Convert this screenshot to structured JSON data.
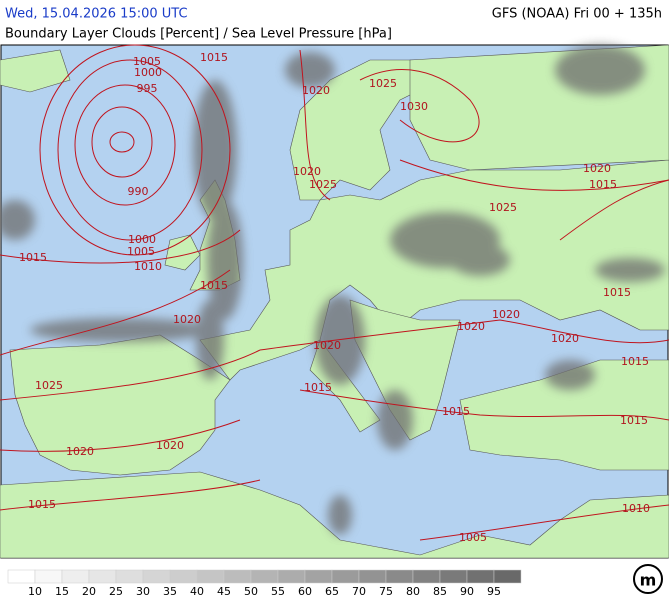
{
  "header": {
    "valid_time": "Wed, 15.04.2026 15:00 UTC",
    "model_run": "GFS (NOAA) Fri 00 + 135h",
    "title": "Boundary Layer Clouds [Percent] / Sea Level Pressure [hPa]"
  },
  "isobar_labels": [
    1005,
    1015,
    1000,
    995,
    1020,
    1025,
    1030,
    990,
    1000,
    1005,
    1010,
    1015,
    1015,
    1020,
    1020,
    1025,
    1025,
    1020,
    1015,
    1015,
    1020,
    1020,
    1020,
    1020,
    1015,
    1015,
    1015,
    1015,
    1025,
    1020,
    1020,
    1015,
    1010,
    1005
  ],
  "legend": {
    "ticks": [
      10,
      15,
      20,
      25,
      30,
      35,
      40,
      45,
      50,
      55,
      60,
      65,
      70,
      75,
      80,
      85,
      90,
      95
    ]
  }
}
